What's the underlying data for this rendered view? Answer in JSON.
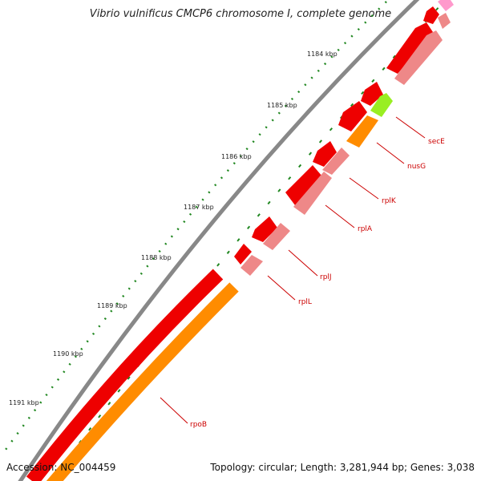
{
  "title": "Vibrio vulnificus CMCP6 chromosome I, complete genome",
  "footer": {
    "accession": "Accession: NC_004459",
    "summary": "Topology: circular; Length: 3,281,944 bp; Genes: 3,038"
  },
  "scale_labels": [
    "1184 kbp",
    "1185 kbp",
    "1186 kbp",
    "1187 kbp",
    "1188 kbp",
    "1189 kbp",
    "1190 kbp",
    "1191 kbp"
  ],
  "gene_labels": [
    "secE",
    "nusG",
    "rplK",
    "rplA",
    "rplJ",
    "rplL",
    "rpoB"
  ],
  "colors": {
    "backbone": "#888888",
    "cds": "#ee0000",
    "rna_feature": "#ee8888",
    "orange_feature": "#ff8c00",
    "green_feature": "#99ee22",
    "pink_feature": "#ff99cc",
    "tick": "#228822",
    "label_line": "#cc0000"
  }
}
